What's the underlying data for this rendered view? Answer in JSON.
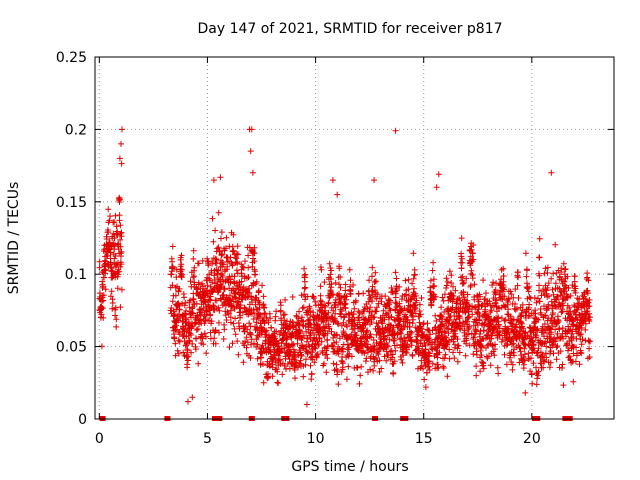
{
  "chart_data": {
    "type": "scatter",
    "title": "Day 147 of 2021, SRMTID for receiver p817",
    "xlabel": "GPS time / hours",
    "ylabel": "SRMTID / TECUs",
    "xlim": [
      -0.2,
      23.8
    ],
    "ylim": [
      0,
      0.25
    ],
    "grid": true,
    "legend": "none",
    "marker": "plus",
    "color": "#e00000",
    "xticks": [
      0,
      5,
      10,
      15,
      20
    ],
    "xtick_labels": [
      "0",
      "5",
      "10",
      "15",
      "20"
    ],
    "yticks": [
      0,
      0.05,
      0.1,
      0.15,
      0.2,
      0.25
    ],
    "ytick_labels": [
      "0",
      "0.05",
      "0.1",
      "0.15",
      "0.2",
      "0.25"
    ],
    "observation_segments": [
      {
        "start": 0.0,
        "end": 1.05
      },
      {
        "start": 3.3,
        "end": 22.7
      }
    ],
    "envelope": {
      "hours": [
        0.0,
        0.5,
        1.0,
        3.3,
        4.0,
        5.0,
        5.5,
        6.0,
        7.0,
        7.5,
        8.0,
        9.0,
        10.0,
        10.5,
        11.0,
        12.0,
        13.0,
        14.0,
        14.5,
        15.0,
        15.5,
        16.0,
        17.0,
        18.0,
        19.0,
        20.0,
        20.5,
        21.0,
        22.0,
        22.7
      ],
      "center": [
        0.09,
        0.095,
        0.115,
        0.075,
        0.065,
        0.085,
        0.095,
        0.09,
        0.08,
        0.06,
        0.05,
        0.055,
        0.06,
        0.065,
        0.055,
        0.06,
        0.06,
        0.065,
        0.065,
        0.05,
        0.055,
        0.065,
        0.07,
        0.065,
        0.065,
        0.055,
        0.07,
        0.07,
        0.06,
        0.07
      ],
      "spread": [
        0.025,
        0.03,
        0.04,
        0.025,
        0.025,
        0.035,
        0.035,
        0.03,
        0.035,
        0.02,
        0.02,
        0.02,
        0.025,
        0.03,
        0.025,
        0.025,
        0.025,
        0.03,
        0.03,
        0.02,
        0.025,
        0.025,
        0.025,
        0.025,
        0.025,
        0.025,
        0.035,
        0.035,
        0.025,
        0.025
      ]
    },
    "peak_points": [
      {
        "x": 1.05,
        "y": 0.2
      },
      {
        "x": 1.0,
        "y": 0.19
      },
      {
        "x": 0.95,
        "y": 0.18
      },
      {
        "x": 6.95,
        "y": 0.2
      },
      {
        "x": 7.05,
        "y": 0.2
      },
      {
        "x": 7.0,
        "y": 0.185
      },
      {
        "x": 7.1,
        "y": 0.17
      },
      {
        "x": 13.7,
        "y": 0.199
      },
      {
        "x": 12.7,
        "y": 0.165
      },
      {
        "x": 15.7,
        "y": 0.169
      },
      {
        "x": 5.3,
        "y": 0.165
      },
      {
        "x": 5.6,
        "y": 0.167
      },
      {
        "x": 10.8,
        "y": 0.165
      },
      {
        "x": 20.9,
        "y": 0.17
      },
      {
        "x": 11.0,
        "y": 0.155
      },
      {
        "x": 15.6,
        "y": 0.16
      },
      {
        "x": 4.1,
        "y": 0.012
      },
      {
        "x": 9.6,
        "y": 0.01
      },
      {
        "x": 15.1,
        "y": 0.022
      },
      {
        "x": 19.7,
        "y": 0.018
      },
      {
        "x": 7.6,
        "y": 0.025
      },
      {
        "x": 4.3,
        "y": 0.015
      }
    ],
    "data_gap_markers": [
      0.15,
      3.15,
      5.35,
      5.45,
      5.55,
      7.05,
      8.55,
      8.65,
      12.75,
      14.05,
      14.15,
      20.15,
      20.25,
      21.55,
      21.75
    ]
  }
}
